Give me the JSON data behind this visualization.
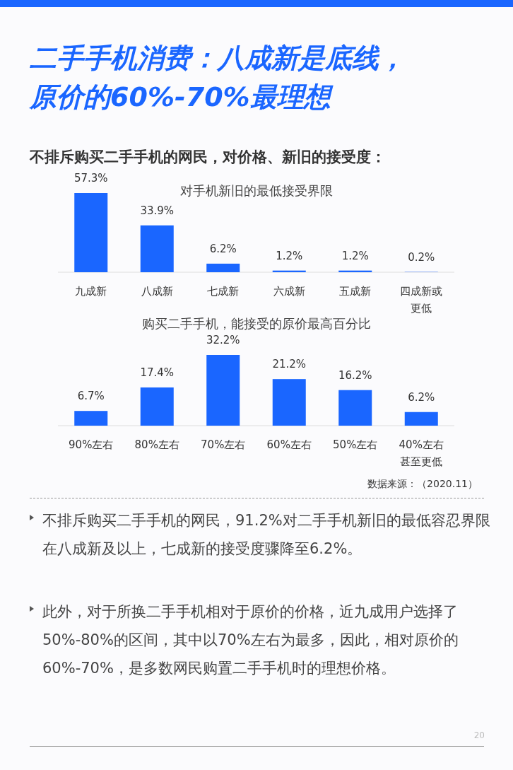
{
  "chart_data": [
    {
      "type": "other",
      "title": "二手手机消费：八成新是底线，原价的60%-70%最理想",
      "subtitle": "不排斥购买二手手机的网民，对价格、新旧的接受度："
    },
    {
      "type": "bar",
      "title": "对手机新旧的最低接受界限",
      "categories": [
        "九成新",
        "八成新",
        "七成新",
        "六成新",
        "五成新",
        "四成新或更低"
      ],
      "values": [
        57.3,
        33.9,
        6.2,
        1.2,
        1.2,
        0.2
      ],
      "value_labels": [
        "57.3%",
        "33.9%",
        "6.2%",
        "1.2%",
        "1.2%",
        "0.2%"
      ],
      "color": "#1a66ff"
    },
    {
      "type": "bar",
      "title": "购买二手手机，能接受的原价最高百分比",
      "categories": [
        "90%左右",
        "80%左右",
        "70%左右",
        "60%左右",
        "50%左右",
        "40%左右甚至更低"
      ],
      "values": [
        6.7,
        17.4,
        32.2,
        21.2,
        16.2,
        6.2
      ],
      "value_labels": [
        "6.7%",
        "17.4%",
        "32.2%",
        "21.2%",
        "16.2%",
        "6.2%"
      ],
      "color": "#1a66ff"
    },
    {
      "type": "other",
      "annotations": [
        "数据来源：（2020.11）",
        "不排斥购买二手手机的网民，91.2%对二手手机新旧的最低容忍界限在八成新及以上，七成新的接受度骤降至6.2%。",
        "此外，对于所换二手手机相对于原价的价格，近九成用户选择了50%-80%的区间，其中以70%左右为最多，因此，相对原价的60%-70%，是多数网民购置二手手机时的理想价格。",
        "20"
      ]
    }
  ]
}
